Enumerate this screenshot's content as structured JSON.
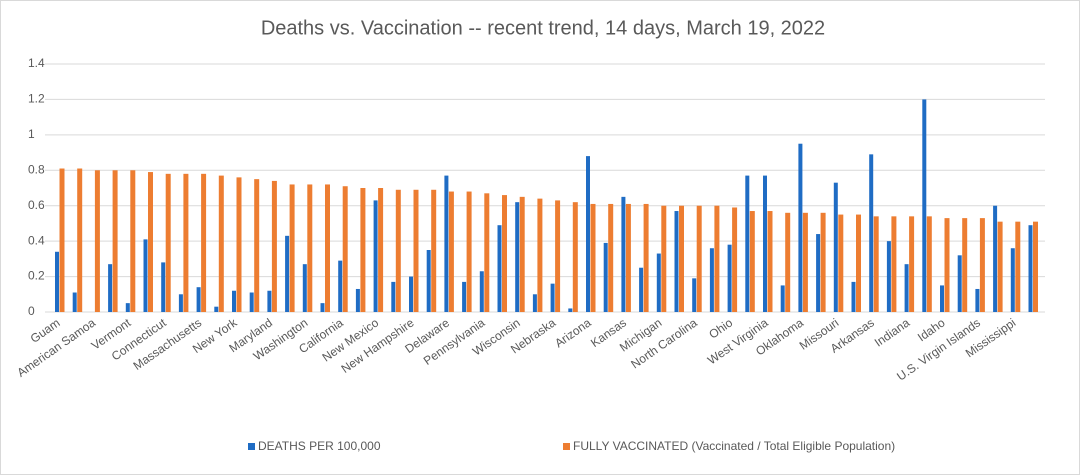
{
  "chart_data": {
    "type": "bar",
    "title": "Deaths vs. Vaccination -- recent trend, 14 days, March 19, 2022",
    "categories": [
      "Guam",
      null,
      "American Samoa",
      null,
      "Vermont",
      null,
      "Connecticut",
      null,
      "Massachusetts",
      null,
      "New York",
      null,
      "Maryland",
      null,
      "Washington",
      null,
      "California",
      null,
      "New Mexico",
      null,
      "New Hampshire",
      null,
      "Delaware",
      null,
      "Pennsylvania",
      null,
      "Wisconsin",
      null,
      "Nebraska",
      null,
      "Arizona",
      null,
      "Kansas",
      null,
      "Michigan",
      null,
      "North Carolina",
      null,
      "Ohio",
      null,
      "West Virginia",
      null,
      "Oklahoma",
      null,
      "Missouri",
      null,
      "Arkansas",
      null,
      "Indiana",
      null,
      "Idaho",
      null,
      "U.S. Virgin Islands",
      null,
      "Mississippi",
      null
    ],
    "series": [
      {
        "name": "DEATHS PER 100,000",
        "color": "#1f6cc4",
        "values": [
          0.34,
          0.11,
          0,
          0.27,
          0.05,
          0.41,
          0.28,
          0.1,
          0.14,
          0.03,
          0.12,
          0.11,
          0.12,
          0.43,
          0.27,
          0.05,
          0.29,
          0.13,
          0.63,
          0.17,
          0.2,
          0.35,
          0.77,
          0.17,
          0.23,
          0.49,
          0.62,
          0.1,
          0.16,
          0.02,
          0.88,
          0.39,
          0.65,
          0.25,
          0.33,
          0.57,
          0.19,
          0.36,
          0.38,
          0.77,
          0.77,
          0.15,
          0.95,
          0.44,
          0.73,
          0.17,
          0.89,
          0.4,
          0.27,
          1.2,
          0.15,
          0.32,
          0.13,
          0.6,
          0.36,
          0.49
        ]
      },
      {
        "name": "FULLY VACCINATED (Vaccinated / Total Eligible Population)",
        "color": "#ed7d31",
        "values": [
          0.81,
          0.81,
          0.8,
          0.8,
          0.8,
          0.79,
          0.78,
          0.78,
          0.78,
          0.77,
          0.76,
          0.75,
          0.74,
          0.72,
          0.72,
          0.72,
          0.71,
          0.7,
          0.7,
          0.69,
          0.69,
          0.69,
          0.68,
          0.68,
          0.67,
          0.66,
          0.65,
          0.64,
          0.63,
          0.62,
          0.61,
          0.61,
          0.61,
          0.61,
          0.6,
          0.6,
          0.6,
          0.6,
          0.59,
          0.57,
          0.57,
          0.56,
          0.56,
          0.56,
          0.55,
          0.55,
          0.54,
          0.54,
          0.54,
          0.54,
          0.53,
          0.53,
          0.53,
          0.51,
          0.51,
          0.51
        ]
      }
    ],
    "ylim": [
      0,
      1.4
    ],
    "yticks": [
      0,
      0.2,
      0.4,
      0.6,
      0.8,
      1,
      1.2,
      1.4
    ],
    "grid": true,
    "legend": "bottom"
  }
}
